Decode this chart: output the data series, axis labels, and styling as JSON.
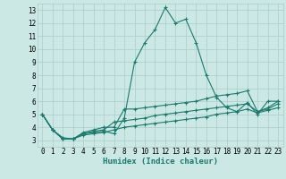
{
  "xlabel": "Humidex (Indice chaleur)",
  "background_color": "#cce8e4",
  "grid_color": "#aaccca",
  "line_color": "#1a7a6e",
  "xlim": [
    -0.5,
    23.5
  ],
  "ylim": [
    2.5,
    13.5
  ],
  "xticks": [
    0,
    1,
    2,
    3,
    4,
    5,
    6,
    7,
    8,
    9,
    10,
    11,
    12,
    13,
    14,
    15,
    16,
    17,
    18,
    19,
    20,
    21,
    22,
    23
  ],
  "yticks": [
    3,
    4,
    5,
    6,
    7,
    8,
    9,
    10,
    11,
    12,
    13
  ],
  "lines": [
    {
      "x": [
        0,
        1,
        2,
        3,
        4,
        5,
        6,
        7,
        8,
        9,
        10,
        11,
        12,
        13,
        14,
        15,
        16,
        17,
        18,
        19,
        20,
        21,
        22,
        23
      ],
      "y": [
        5.0,
        3.8,
        3.1,
        3.1,
        3.5,
        3.6,
        3.7,
        3.5,
        4.7,
        9.0,
        10.5,
        11.5,
        13.2,
        12.0,
        12.3,
        10.5,
        8.0,
        6.3,
        5.5,
        5.2,
        5.9,
        5.0,
        6.0,
        6.0
      ]
    },
    {
      "x": [
        0,
        1,
        2,
        3,
        4,
        5,
        6,
        7,
        8,
        9,
        10,
        11,
        12,
        13,
        14,
        15,
        16,
        17,
        18,
        19,
        20,
        21,
        22,
        23
      ],
      "y": [
        5.0,
        3.8,
        3.1,
        3.1,
        3.6,
        3.8,
        4.0,
        4.0,
        5.4,
        5.4,
        5.5,
        5.6,
        5.7,
        5.8,
        5.9,
        6.0,
        6.2,
        6.4,
        6.5,
        6.6,
        6.8,
        5.2,
        5.5,
        6.0
      ]
    },
    {
      "x": [
        0,
        1,
        2,
        3,
        4,
        5,
        6,
        7,
        8,
        9,
        10,
        11,
        12,
        13,
        14,
        15,
        16,
        17,
        18,
        19,
        20,
        21,
        22,
        23
      ],
      "y": [
        5.0,
        3.8,
        3.1,
        3.1,
        3.5,
        3.7,
        3.8,
        4.4,
        4.5,
        4.6,
        4.7,
        4.9,
        5.0,
        5.1,
        5.2,
        5.3,
        5.4,
        5.5,
        5.6,
        5.7,
        5.8,
        5.2,
        5.4,
        5.8
      ]
    },
    {
      "x": [
        0,
        1,
        2,
        3,
        4,
        5,
        6,
        7,
        8,
        9,
        10,
        11,
        12,
        13,
        14,
        15,
        16,
        17,
        18,
        19,
        20,
        21,
        22,
        23
      ],
      "y": [
        5.0,
        3.8,
        3.2,
        3.1,
        3.4,
        3.5,
        3.6,
        3.8,
        4.0,
        4.1,
        4.2,
        4.3,
        4.4,
        4.5,
        4.6,
        4.7,
        4.8,
        5.0,
        5.1,
        5.2,
        5.4,
        5.1,
        5.3,
        5.5
      ]
    }
  ],
  "marker": "+",
  "markersize": 3,
  "linewidth": 0.8,
  "tick_fontsize": 5.5,
  "xlabel_fontsize": 6.5
}
